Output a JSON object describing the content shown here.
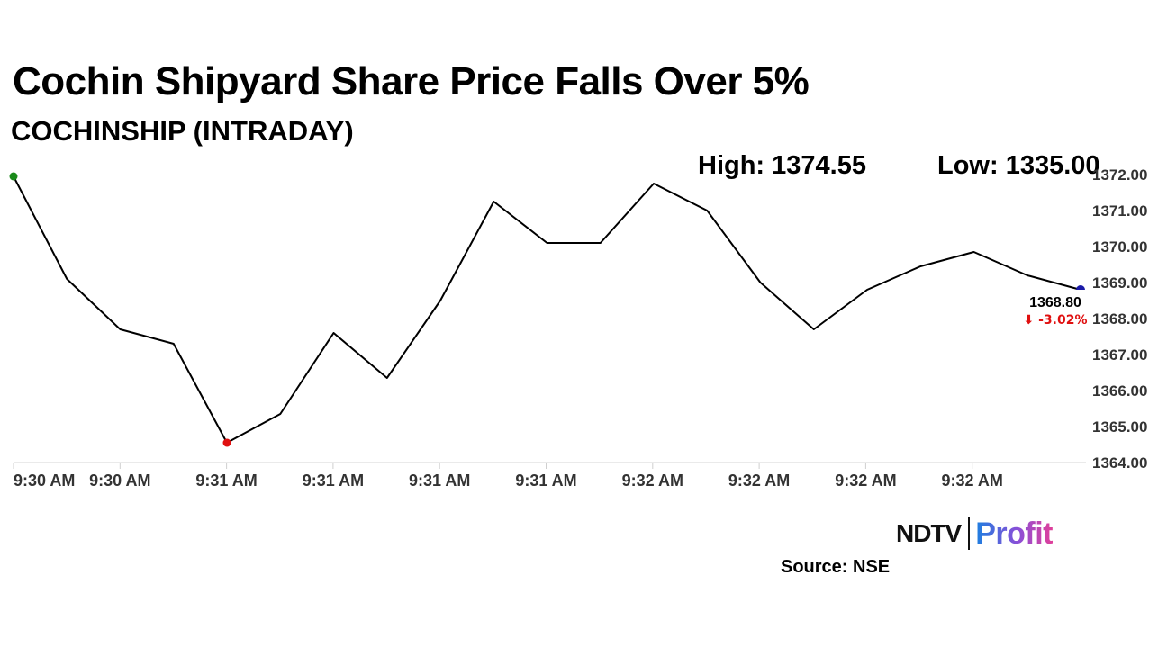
{
  "header": {
    "title": "Cochin Shipyard Share Price Falls Over 5%",
    "subtitle": "COCHINSHIP (INTRADAY)",
    "high_label": "High: 1374.55",
    "low_label": "Low: 1335.00"
  },
  "footer": {
    "logo_left": "NDTV",
    "logo_right": "Profit",
    "source": "Source: NSE"
  },
  "chart_data": {
    "type": "line",
    "x": [
      "9:30 AM",
      "9:30 AM",
      "9:30 AM",
      "9:30 AM",
      "9:31 AM",
      "9:31 AM",
      "9:31 AM",
      "9:31 AM",
      "9:31 AM",
      "9:31 AM",
      "9:32 AM",
      "9:32 AM",
      "9:32 AM",
      "9:32 AM",
      "9:32 AM",
      "9:32 AM",
      "9:32 AM",
      "9:32 AM",
      "9:32 AM",
      "9:32 AM",
      "9:32 AM"
    ],
    "values": [
      1371.95,
      1369.1,
      1367.7,
      1367.3,
      1364.55,
      1365.35,
      1367.6,
      1366.35,
      1368.5,
      1371.25,
      1370.1,
      1370.1,
      1371.75,
      1371.0,
      1369.0,
      1367.7,
      1368.8,
      1369.45,
      1369.85,
      1369.2,
      1368.8
    ],
    "x_ticks": [
      "9:30 AM",
      "9:30 AM",
      "9:31 AM",
      "9:31 AM",
      "9:31 AM",
      "9:31 AM",
      "9:32 AM",
      "9:32 AM",
      "9:32 AM",
      "9:32 AM"
    ],
    "y_ticks": [
      "1364.00",
      "1365.00",
      "1366.00",
      "1367.00",
      "1368.00",
      "1369.00",
      "1370.00",
      "1371.00",
      "1372.00"
    ],
    "ylim": [
      1364,
      1372
    ],
    "y_axis_side": "right",
    "grid": false,
    "last_value_label": "1368.80",
    "change_label": "-3.02%",
    "colors": {
      "line": "#000000",
      "start_marker": "#1a8a1a",
      "low_marker": "#e01010",
      "end_marker": "#1a1aa8",
      "change": "#e01010"
    }
  }
}
